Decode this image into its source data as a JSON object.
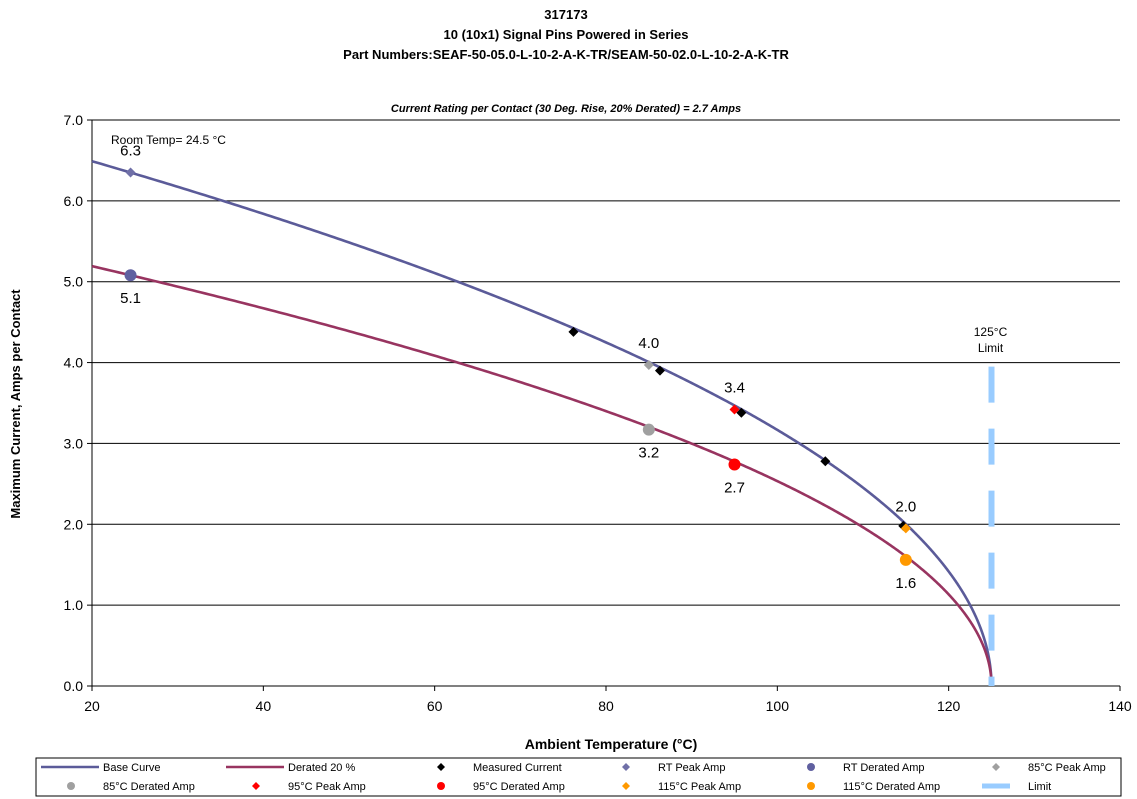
{
  "chart_data": {
    "type": "line",
    "title": [
      "317173",
      "10 (10x1) Signal Pins Powered in Series",
      "Part Numbers:SEAF-50-05.0-L-10-2-A-K-TR/SEAM-50-02.0-L-10-2-A-K-TR"
    ],
    "subtitle": "Current Rating per Contact (30 Deg. Rise, 20% Derated)  = 2.7 Amps",
    "xlabel": "Ambient Temperature (°C)",
    "ylabel": "Maximum Current, Amps per Contact",
    "xlim": [
      20,
      140
    ],
    "ylim": [
      0,
      7
    ],
    "xticks": [
      "20",
      "40",
      "60",
      "80",
      "100",
      "120",
      "140"
    ],
    "yticks": [
      "0.0",
      "1.0",
      "2.0",
      "3.0",
      "4.0",
      "5.0",
      "6.0",
      "7.0"
    ],
    "grid": "horizontal",
    "legend_position": "bottom",
    "room_temp_label": "Room Temp= 24.5 °C",
    "limit_label": [
      "125°C",
      "Limit"
    ],
    "series": [
      {
        "name": "Base Curve",
        "kind": "curve",
        "color": "#5b5b99",
        "imax": 6.35,
        "t_room": 24.5,
        "t_limit": 125,
        "x_start": 20
      },
      {
        "name": "Derated 20 %",
        "kind": "curve",
        "color": "#983460",
        "imax": 5.08,
        "t_room": 24.5,
        "t_limit": 125,
        "x_start": 20
      },
      {
        "name": "Measured Current",
        "kind": "diamond",
        "color": "#000000",
        "points": [
          [
            76.2,
            4.38
          ],
          [
            86.3,
            3.9
          ],
          [
            95.8,
            3.38
          ],
          [
            105.6,
            2.78
          ],
          [
            114.7,
            1.98
          ]
        ]
      },
      {
        "name": "RT Peak Amp",
        "kind": "diamond",
        "color": "#7070a8",
        "points": [
          [
            24.5,
            6.35
          ]
        ]
      },
      {
        "name": "RT Derated Amp",
        "kind": "circle",
        "color": "#6060a0",
        "points": [
          [
            24.5,
            5.08
          ]
        ]
      },
      {
        "name": "85°C Peak Amp",
        "kind": "diamond",
        "color": "#a0a0a0",
        "points": [
          [
            85,
            3.97
          ]
        ]
      },
      {
        "name": "85°C Derated Amp",
        "kind": "circle",
        "color": "#a0a0a0",
        "points": [
          [
            85,
            3.17
          ]
        ]
      },
      {
        "name": "95°C Peak Amp",
        "kind": "diamond",
        "color": "#ff0000",
        "points": [
          [
            95,
            3.42
          ]
        ]
      },
      {
        "name": "95°C Derated Amp",
        "kind": "circle",
        "color": "#ff0000",
        "points": [
          [
            95,
            2.74
          ]
        ]
      },
      {
        "name": "115°C Peak Amp",
        "kind": "diamond",
        "color": "#ff9900",
        "points": [
          [
            115,
            1.95
          ]
        ]
      },
      {
        "name": "115°C Derated Amp",
        "kind": "circle",
        "color": "#ff9900",
        "points": [
          [
            115,
            1.56
          ]
        ]
      },
      {
        "name": "Limit",
        "kind": "vline",
        "color": "#99ccff",
        "x": 125
      }
    ],
    "data_labels": [
      {
        "text": "6.3",
        "x": 24.5,
        "y": 6.35,
        "pos": "above"
      },
      {
        "text": "5.1",
        "x": 24.5,
        "y": 5.08,
        "pos": "below"
      },
      {
        "text": "4.0",
        "x": 85,
        "y": 3.97,
        "pos": "above"
      },
      {
        "text": "3.2",
        "x": 85,
        "y": 3.17,
        "pos": "below"
      },
      {
        "text": "3.4",
        "x": 95,
        "y": 3.42,
        "pos": "above"
      },
      {
        "text": "2.7",
        "x": 95,
        "y": 2.74,
        "pos": "below"
      },
      {
        "text": "2.0",
        "x": 115,
        "y": 1.95,
        "pos": "above"
      },
      {
        "text": "1.6",
        "x": 115,
        "y": 1.56,
        "pos": "below"
      }
    ]
  }
}
